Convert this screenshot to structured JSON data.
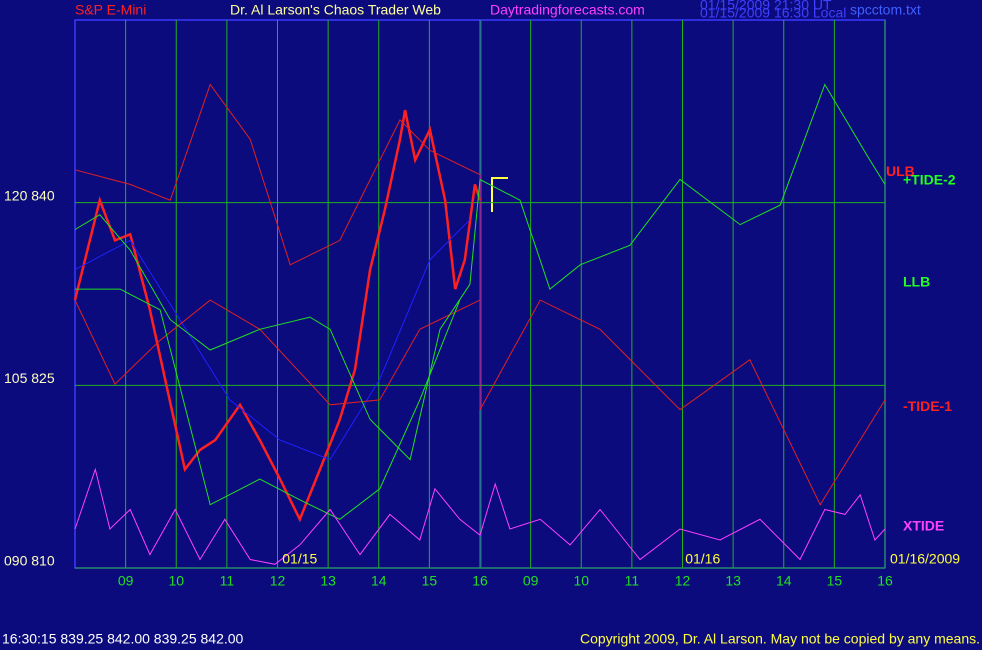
{
  "chart_data": {
    "type": "line",
    "title": "Dr. Al Larson's Chaos Trader Web",
    "symbol": "S&P E-Mini",
    "site": "Daytradingforecasts.com",
    "timestamps": [
      "01/15/2009 21:30 UT",
      "01/15/2009 16:30 Local"
    ],
    "file": "spcctom.txt",
    "status": "16:30:15  839.25 842.00 839.25 842.00",
    "copyright": "Copyright 2009, Dr. Al Larson. May not be copied by any means.",
    "xlim": [
      0,
      16
    ],
    "ylim": [
      810,
      855
    ],
    "grid": true,
    "xticks": [
      {
        "value": 1,
        "label": "09"
      },
      {
        "value": 2,
        "label": "10"
      },
      {
        "value": 3,
        "label": "11"
      },
      {
        "value": 4,
        "label": "12"
      },
      {
        "value": 5,
        "label": "13"
      },
      {
        "value": 6,
        "label": "14"
      },
      {
        "value": 7,
        "label": "15"
      },
      {
        "value": 8,
        "label": "16"
      },
      {
        "value": 9,
        "label": "09"
      },
      {
        "value": 10,
        "label": "10"
      },
      {
        "value": 11,
        "label": "11"
      },
      {
        "value": 12,
        "label": "12"
      },
      {
        "value": 13,
        "label": "13"
      },
      {
        "value": 14,
        "label": "14"
      },
      {
        "value": 15,
        "label": "15"
      },
      {
        "value": 16,
        "label": "16"
      }
    ],
    "yticks": [
      {
        "value": 840,
        "label": "120  840"
      },
      {
        "value": 825,
        "label": "105  825"
      },
      {
        "value": 810,
        "label": "090  810"
      }
    ],
    "date_labels": [
      {
        "x": 4.44,
        "text": "01/15"
      },
      {
        "x": 12.4,
        "text": "01/16"
      },
      {
        "x": 16,
        "text": "01/16/2009"
      }
    ],
    "curve_labels": [
      {
        "text": "ULB",
        "color": "#ff2020",
        "y": 842.5
      },
      {
        "text": "+TIDE-2",
        "color": "#20ff20",
        "y": 841.8
      },
      {
        "text": "LLB",
        "color": "#20ff20",
        "y": 833.4
      },
      {
        "text": "-TIDE-1",
        "color": "#ff2020",
        "y": 823.2
      },
      {
        "text": "XTIDE",
        "color": "#ff40ff",
        "y": 813.4
      }
    ],
    "series": [
      {
        "color": "#ff2020",
        "x": [
          0,
          0.49,
          0.79,
          1.09,
          1.48,
          1.78,
          2.17,
          2.47,
          2.77,
          3.26,
          3.65,
          4.05,
          4.44,
          4.84,
          5.23,
          5.53,
          5.83,
          6.12,
          6.42,
          6.52,
          6.72,
          7.01,
          7.31,
          7.51,
          7.7,
          7.9,
          8.0
        ],
        "values": [
          832.0,
          840.2,
          836.9,
          837.4,
          831.2,
          825.5,
          818.1,
          819.7,
          820.5,
          823.4,
          820.5,
          817.3,
          814.0,
          818.1,
          822.2,
          826.3,
          834.5,
          839.4,
          845.2,
          847.6,
          843.5,
          846.0,
          840.2,
          832.9,
          835.3,
          841.5,
          840.2
        ]
      },
      {
        "color": "#2020ff",
        "x": [
          0,
          1.09,
          2.07,
          3.06,
          4.05,
          5.04,
          6.02,
          7.01,
          7.8
        ],
        "values": [
          834.5,
          836.9,
          830.4,
          823.8,
          820.5,
          818.9,
          825.5,
          835.3,
          838.6
        ]
      },
      {
        "color": "#e02020",
        "x": [
          0,
          1.09,
          1.88,
          2.67,
          3.46,
          4.25,
          5.23,
          6.42,
          7.01,
          8.0,
          8.0,
          9.19,
          10.37,
          11.95,
          13.33,
          14.72,
          16.0
        ],
        "values": [
          842.7,
          841.5,
          840.2,
          849.7,
          845.2,
          834.9,
          836.9,
          846.8,
          844.3,
          842.3,
          823.0,
          832.0,
          829.6,
          823.0,
          827.1,
          815.2,
          823.8
        ]
      },
      {
        "color": "#e02020",
        "x": [
          0,
          0.79,
          1.68,
          2.67,
          3.65,
          5.04,
          6.02,
          6.81,
          8.0
        ],
        "values": [
          832.0,
          825.1,
          828.7,
          832.0,
          829.6,
          823.4,
          823.8,
          829.6,
          832.0
        ]
      },
      {
        "color": "#20e020",
        "x": [
          0,
          0.49,
          1.09,
          1.88,
          2.67,
          3.65,
          4.64,
          5.04,
          5.83,
          6.62,
          7.21,
          7.8,
          8.0,
          8.79,
          9.38,
          9.98,
          10.96,
          11.95,
          13.14,
          13.93,
          14.81,
          15.7,
          16.0
        ],
        "values": [
          837.8,
          839.0,
          836.1,
          830.4,
          827.9,
          829.6,
          830.6,
          829.6,
          822.2,
          818.9,
          829.6,
          833.3,
          841.9,
          840.2,
          832.9,
          834.9,
          836.5,
          841.9,
          838.2,
          839.8,
          849.7,
          843.5,
          841.5
        ]
      },
      {
        "color": "#20e020",
        "x": [
          0,
          0.89,
          1.68,
          2.67,
          3.65,
          4.44,
          5.23,
          6.02,
          6.81,
          7.6
        ],
        "values": [
          832.9,
          832.9,
          831.2,
          815.2,
          817.3,
          815.6,
          814.0,
          816.5,
          823.8,
          832.0
        ]
      },
      {
        "color": "#ff40ff",
        "x": [
          0,
          0.4,
          0.69,
          1.09,
          1.48,
          1.98,
          2.47,
          2.96,
          3.46,
          3.95,
          4.44,
          5.04,
          5.63,
          6.22,
          6.81,
          7.11,
          7.6,
          8.0,
          8.3,
          8.59,
          9.19,
          9.78,
          10.37,
          11.16,
          11.95,
          12.74,
          13.53,
          14.32,
          14.81,
          15.21,
          15.51,
          15.8,
          16.0
        ],
        "values": [
          813.2,
          818.1,
          813.2,
          814.8,
          811.1,
          814.8,
          810.7,
          814.0,
          810.7,
          810.3,
          811.9,
          814.8,
          811.1,
          814.4,
          812.3,
          816.5,
          814.0,
          812.7,
          816.9,
          813.2,
          814.0,
          811.9,
          814.8,
          810.7,
          813.2,
          812.3,
          814.0,
          810.7,
          814.8,
          814.4,
          816.0,
          812.3,
          813.2
        ]
      }
    ]
  }
}
